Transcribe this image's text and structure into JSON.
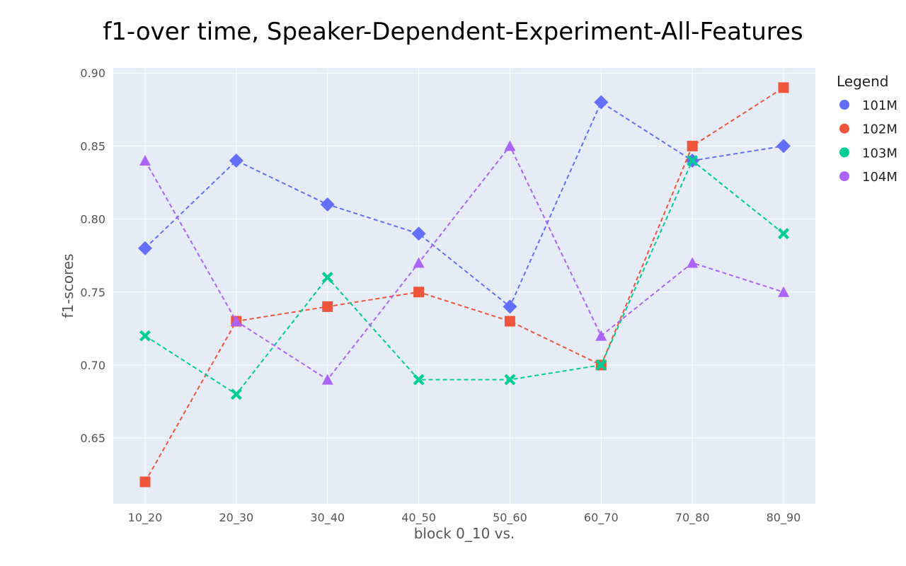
{
  "chart_data": {
    "type": "line",
    "title": "f1-over time, Speaker-Dependent-Experiment-All-Features",
    "xlabel": "block 0_10 vs.",
    "ylabel": "f1-scores",
    "categories": [
      "10_20",
      "20_30",
      "30_40",
      "40_50",
      "50_60",
      "60_70",
      "70_80",
      "80_90"
    ],
    "ylim": [
      0.605,
      0.9035
    ],
    "yticks": [
      0.65,
      0.7,
      0.75,
      0.8,
      0.85,
      0.9
    ],
    "ytick_labels": [
      "0.65",
      "0.70",
      "0.75",
      "0.80",
      "0.85",
      "0.90"
    ],
    "grid": true,
    "legend": {
      "title": "Legend",
      "placement": "right"
    },
    "series": [
      {
        "name": "101M",
        "color": "#636efa",
        "marker": "diamond",
        "values": [
          0.78,
          0.84,
          0.81,
          0.79,
          0.74,
          0.88,
          0.84,
          0.85
        ]
      },
      {
        "name": "102M",
        "color": "#ef553b",
        "marker": "square",
        "values": [
          0.62,
          0.73,
          0.74,
          0.75,
          0.73,
          0.7,
          0.85,
          0.89
        ]
      },
      {
        "name": "103M",
        "color": "#00cc96",
        "marker": "x",
        "values": [
          0.72,
          0.68,
          0.76,
          0.69,
          0.69,
          0.7,
          0.84,
          0.79
        ]
      },
      {
        "name": "104M",
        "color": "#ab63fa",
        "marker": "triangle-up",
        "values": [
          0.84,
          0.73,
          0.69,
          0.77,
          0.85,
          0.72,
          0.77,
          0.75
        ]
      }
    ]
  }
}
